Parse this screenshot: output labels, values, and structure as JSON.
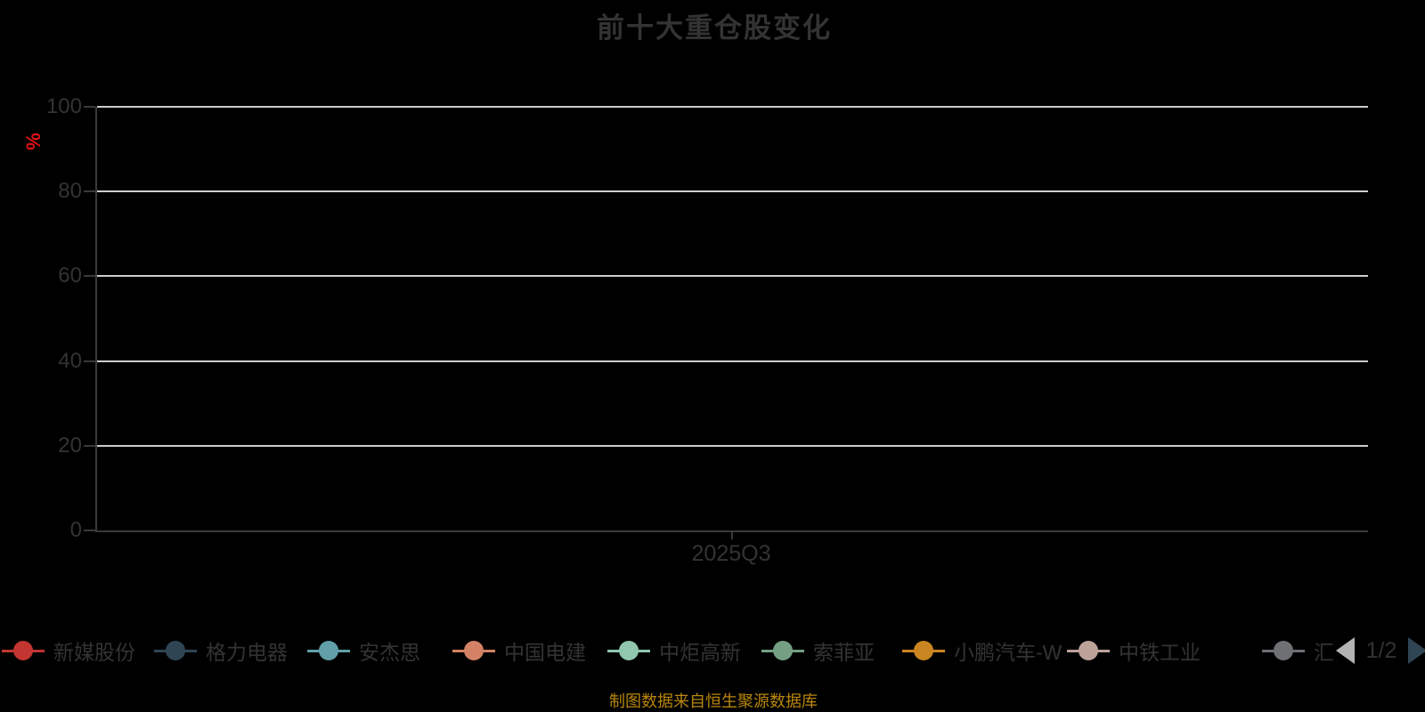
{
  "page": {
    "background_color": "#000000"
  },
  "chart": {
    "title": "前十大重仓股变化",
    "y_axis_name": "%",
    "x_tick_label": "2025Q3",
    "source_note": "制图数据来自恒生聚源数据库",
    "colors": {
      "title_text": "#333333",
      "axis_text": "#333333",
      "axis_line": "#3a3a3a",
      "grid_line": "#cccccc",
      "y_axis_name_text": "#e31212",
      "source_text": "#b8860b"
    }
  },
  "chart_data": {
    "type": "line",
    "title": "前十大重仓股变化",
    "categories": [
      "2025Q3"
    ],
    "xlabel": "",
    "ylabel": "%",
    "ylim": [
      0,
      100
    ],
    "y_ticks": [
      0,
      20,
      40,
      60,
      80,
      100
    ],
    "grid": true,
    "legend_position": "bottom",
    "series": [
      {
        "name": "新媒股份",
        "color": "#c23531",
        "values": []
      },
      {
        "name": "格力电器",
        "color": "#2f4554",
        "values": []
      },
      {
        "name": "安杰思",
        "color": "#61a0a8",
        "values": []
      },
      {
        "name": "中国电建",
        "color": "#d48265",
        "values": []
      },
      {
        "name": "中炬高新",
        "color": "#91c7ae",
        "values": []
      },
      {
        "name": "索菲亚",
        "color": "#749f83",
        "values": []
      },
      {
        "name": "小鹏汽车-W",
        "color": "#ca8622",
        "values": []
      },
      {
        "name": "中铁工业",
        "color": "#bda29a",
        "values": []
      },
      {
        "name": "汇",
        "color": "#6e7074",
        "values": [],
        "truncated": true
      }
    ]
  },
  "legend": {
    "pager": {
      "label": "1/2",
      "prev_icon_color": "#b3b3b3",
      "next_icon_color": "#2f4554"
    }
  }
}
